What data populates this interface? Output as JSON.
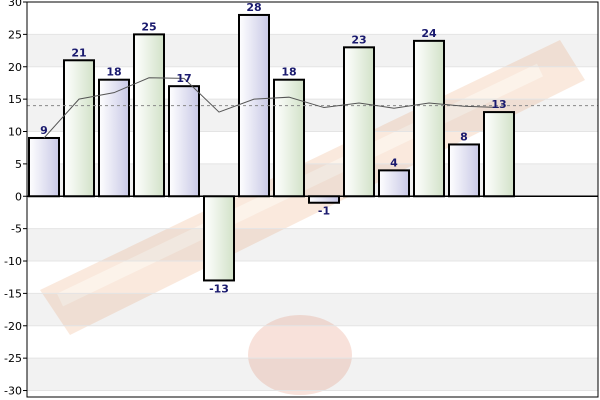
{
  "chart_data": {
    "type": "bar",
    "title": "",
    "xlabel": "",
    "ylabel": "",
    "ylim": [
      -31,
      30
    ],
    "yticks": [
      30,
      25,
      20,
      15,
      10,
      5,
      0,
      -5,
      -10,
      -15,
      -20,
      -25,
      -30
    ],
    "grid": true,
    "legend": "none",
    "values": [
      9,
      21,
      18,
      25,
      17,
      -13,
      28,
      18,
      -1,
      23,
      4,
      24,
      8,
      13
    ],
    "data_labels": [
      "9",
      "21",
      "18",
      "25",
      "17",
      "-13",
      "28",
      "18",
      "-1",
      "23",
      "4",
      "24",
      "8",
      "13"
    ],
    "moving_average": [
      9,
      15,
      16,
      18.3,
      18.2,
      13,
      15,
      15.3,
      13.7,
      14.4,
      13.6,
      14.4,
      13.9,
      13.7
    ],
    "average_line": 14,
    "colors": {
      "bar_odd_fill": "#d4d4ec",
      "bar_even_fill": "#dce8d4",
      "bar_stroke": "#000000",
      "label_color": "#1a1a6e",
      "moving_average_color": "#555555",
      "average_line_color": "#888888",
      "band_light": "#ffffff",
      "band_dark": "#f2f2f2",
      "zero_line": "#000000"
    }
  }
}
